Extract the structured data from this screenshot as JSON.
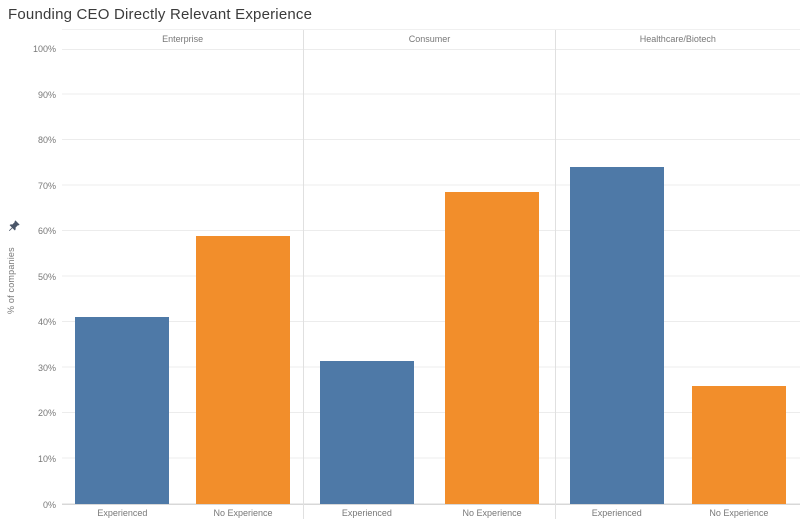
{
  "title": "Founding CEO Directly Relevant Experience",
  "y_axis": {
    "label": "% of companies",
    "ticks": [
      "0%",
      "10%",
      "20%",
      "30%",
      "40%",
      "50%",
      "60%",
      "70%",
      "80%",
      "90%",
      "100%"
    ],
    "pin_icon_color": "#4a5568"
  },
  "chart_data": {
    "type": "bar",
    "title": "Founding CEO Directly Relevant Experience",
    "facets": [
      "Enterprise",
      "Consumer",
      "Healthcare/Biotech"
    ],
    "categories": [
      "Experienced",
      "No Experience"
    ],
    "values_by_facet": [
      [
        41,
        59
      ],
      [
        31.5,
        68.5
      ],
      [
        74,
        26
      ]
    ],
    "ylabel": "% of companies",
    "ylim": [
      0,
      100
    ],
    "ytick_step": 10,
    "grid": "horizontal",
    "legend": "none",
    "colors": {
      "experienced": "#4e79a7",
      "no_experience": "#f28e2b"
    }
  }
}
